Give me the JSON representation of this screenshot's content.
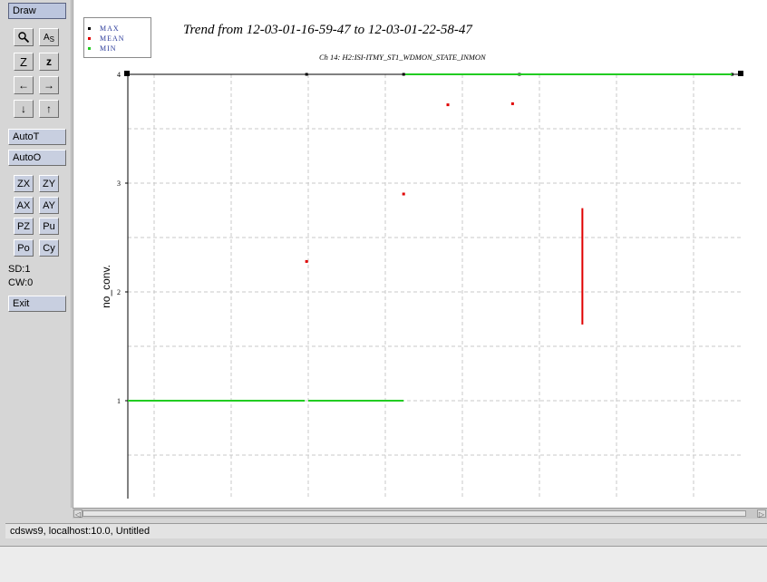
{
  "toolbar": {
    "draw": "Draw",
    "zoom_icon": "magnifier-icon",
    "as_label": "A",
    "as_sub": "S",
    "z_big": "Z",
    "z_small": "z",
    "left_arrow": "←",
    "right_arrow": "→",
    "down_arrow": "↓",
    "up_arrow": "↑",
    "autot": "AutoT",
    "autoo": "AutoO",
    "zx": "ZX",
    "zy": "ZY",
    "ax": "AX",
    "ay": "AY",
    "pz": "PZ",
    "pu": "Pu",
    "po": "Po",
    "cy": "Cy",
    "sd": "SD:1",
    "cw": "CW:0",
    "exit": "Exit"
  },
  "legend": [
    {
      "label": "MAX",
      "color": "#000000"
    },
    {
      "label": "MEAN",
      "color": "#e00000"
    },
    {
      "label": "MIN",
      "color": "#22cc22"
    }
  ],
  "status": "cdsws9, localhost:10.0, Untitled",
  "chart_data": {
    "type": "scatter",
    "title": "Trend from 12-03-01-16-59-47 to 12-03-01-22-58-47",
    "subtitle": "Ch 14: H2:ISI-ITMY_ST1_WDMON_STATE_INMON",
    "ylabel": "no_conv.",
    "xlabel": "",
    "ylim": [
      0.1,
      4.0
    ],
    "xlim": [
      0,
      360
    ],
    "yticks": [
      1,
      2,
      3,
      4
    ],
    "grid": true,
    "series": [
      {
        "name": "MAX",
        "color": "#000000",
        "points": [
          [
            0,
            4
          ],
          [
            105,
            4
          ],
          [
            162,
            4
          ],
          [
            230,
            4
          ],
          [
            355,
            4
          ]
        ]
      },
      {
        "name": "MEAN",
        "color": "#e00000",
        "points": [
          [
            105,
            2.28
          ],
          [
            162,
            2.9
          ],
          [
            188,
            3.72
          ],
          [
            226,
            3.73
          ]
        ],
        "segments": [
          [
            [
              267,
              1.7
            ],
            [
              267,
              2.77
            ]
          ]
        ]
      },
      {
        "name": "MIN",
        "color": "#22cc22",
        "segments": [
          [
            [
              0,
              1
            ],
            [
              104,
              1
            ]
          ],
          [
            [
              106,
              1
            ],
            [
              162,
              1
            ]
          ],
          [
            [
              163,
              4
            ],
            [
              355,
              4
            ]
          ]
        ]
      }
    ]
  }
}
